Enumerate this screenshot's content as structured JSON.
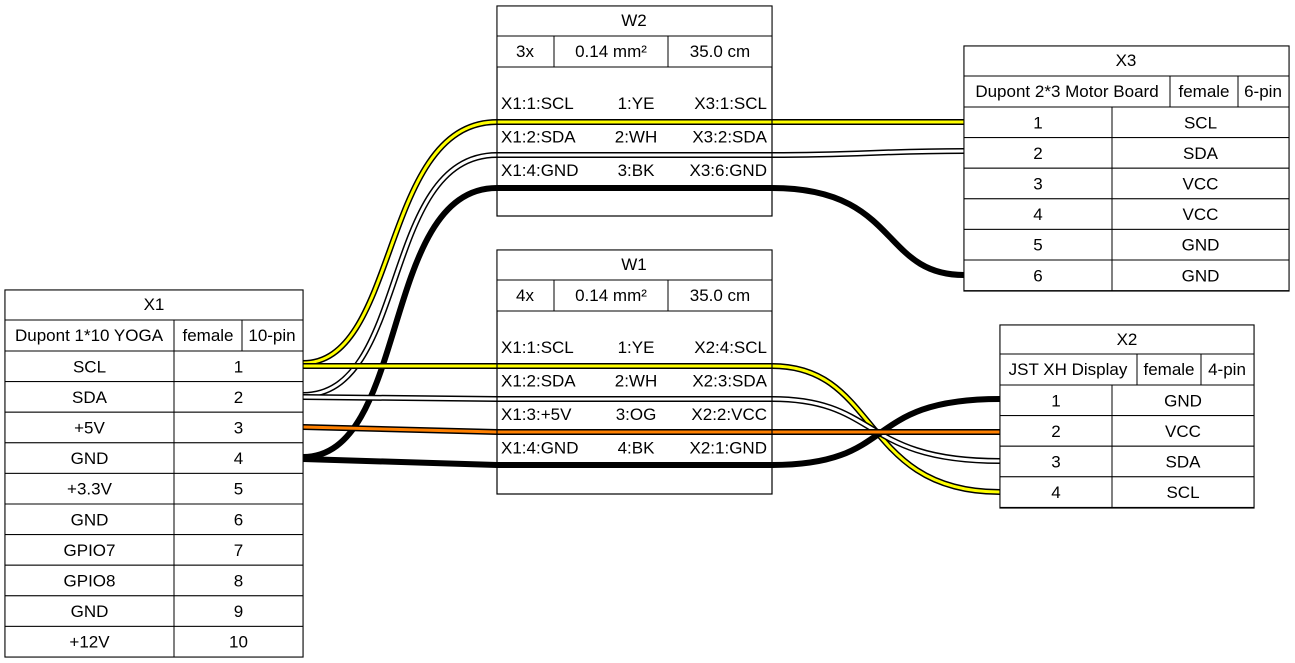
{
  "connectors": {
    "x1": {
      "name": "X1",
      "type": "Dupont 1*10 YOGA",
      "gender": "female",
      "pin_count": "10-pin",
      "pins": [
        {
          "label": "SCL",
          "num": "1"
        },
        {
          "label": "SDA",
          "num": "2"
        },
        {
          "label": "+5V",
          "num": "3"
        },
        {
          "label": "GND",
          "num": "4"
        },
        {
          "label": "+3.3V",
          "num": "5"
        },
        {
          "label": "GND",
          "num": "6"
        },
        {
          "label": "GPIO7",
          "num": "7"
        },
        {
          "label": "GPIO8",
          "num": "8"
        },
        {
          "label": "GND",
          "num": "9"
        },
        {
          "label": "+12V",
          "num": "10"
        }
      ]
    },
    "x2": {
      "name": "X2",
      "type": "JST XH Display",
      "gender": "female",
      "pin_count": "4-pin",
      "pins": [
        {
          "num": "1",
          "label": "GND"
        },
        {
          "num": "2",
          "label": "VCC"
        },
        {
          "num": "3",
          "label": "SDA"
        },
        {
          "num": "4",
          "label": "SCL"
        }
      ]
    },
    "x3": {
      "name": "X3",
      "type": "Dupont 2*3 Motor Board",
      "gender": "female",
      "pin_count": "6-pin",
      "pins": [
        {
          "num": "1",
          "label": "SCL"
        },
        {
          "num": "2",
          "label": "SDA"
        },
        {
          "num": "3",
          "label": "VCC"
        },
        {
          "num": "4",
          "label": "VCC"
        },
        {
          "num": "5",
          "label": "GND"
        },
        {
          "num": "6",
          "label": "GND"
        }
      ]
    }
  },
  "cables": {
    "w1": {
      "name": "W1",
      "count": "4x",
      "gauge": "0.14 mm²",
      "length": "35.0 cm",
      "wires": [
        {
          "from": "X1:1:SCL",
          "color": "1:YE",
          "to": "X2:4:SCL"
        },
        {
          "from": "X1:2:SDA",
          "color": "2:WH",
          "to": "X2:3:SDA"
        },
        {
          "from": "X1:3:+5V",
          "color": "3:OG",
          "to": "X2:2:VCC"
        },
        {
          "from": "X1:4:GND",
          "color": "4:BK",
          "to": "X2:1:GND"
        }
      ]
    },
    "w2": {
      "name": "W2",
      "count": "3x",
      "gauge": "0.14 mm²",
      "length": "35.0 cm",
      "wires": [
        {
          "from": "X1:1:SCL",
          "color": "1:YE",
          "to": "X3:1:SCL"
        },
        {
          "from": "X1:2:SDA",
          "color": "2:WH",
          "to": "X3:2:SDA"
        },
        {
          "from": "X1:4:GND",
          "color": "3:BK",
          "to": "X3:6:GND"
        }
      ]
    }
  },
  "wire_colors": {
    "YE": "#ffff00",
    "WH": "#ffffff",
    "OG": "#ff8000",
    "BK": "#000000"
  }
}
